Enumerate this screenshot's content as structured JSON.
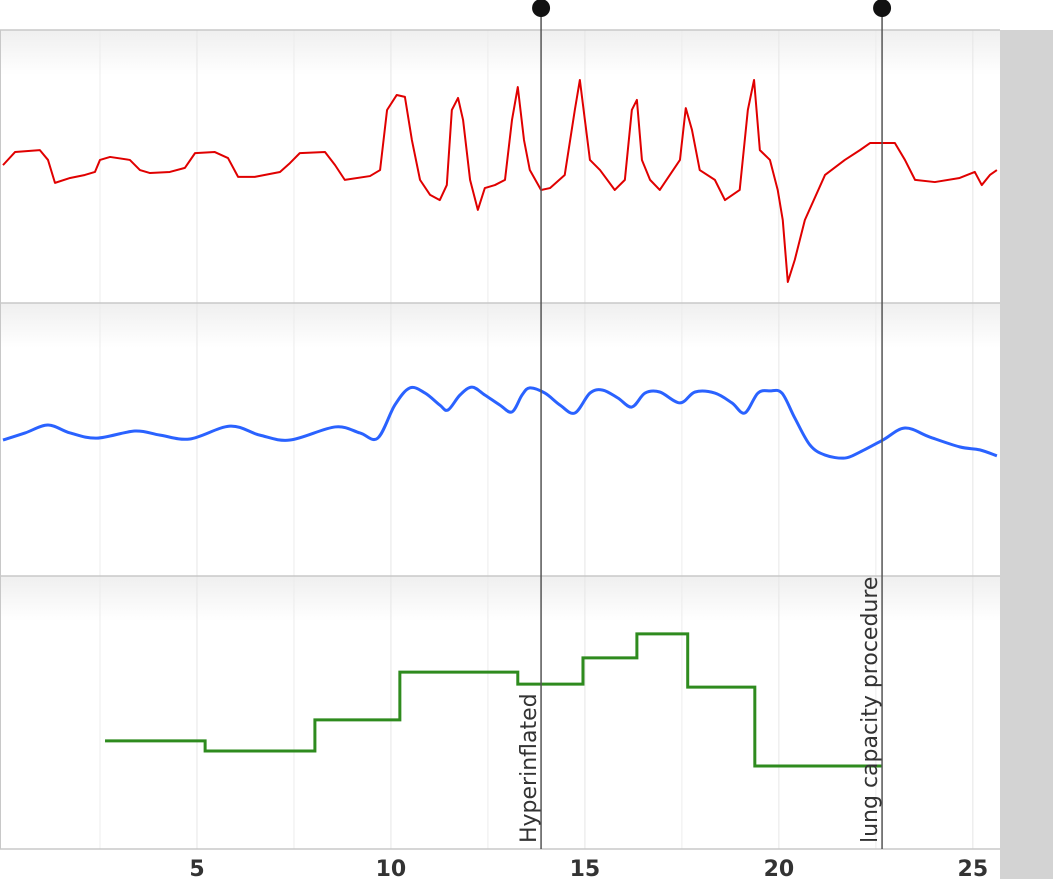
{
  "chart_data": [
    {
      "type": "line",
      "color": "#e00000",
      "ylim": [
        0,
        100
      ],
      "x": [
        0,
        0.31,
        0.95,
        1.16,
        1.34,
        1.73,
        2.11,
        2.37,
        2.5,
        2.76,
        3.27,
        3.53,
        3.79,
        4.3,
        4.69,
        4.95,
        5.46,
        5.8,
        6.06,
        6.49,
        7.14,
        7.4,
        7.65,
        8.3,
        8.56,
        8.81,
        9.46,
        9.72,
        9.9,
        10.15,
        10.36,
        10.54,
        10.75,
        11.01,
        11.26,
        11.44,
        11.57,
        11.73,
        11.86,
        12.04,
        12.24,
        12.42,
        12.68,
        12.94,
        13.12,
        13.27,
        13.43,
        13.58,
        13.87,
        14.1,
        14.48,
        14.74,
        14.87,
        15.0,
        15.13,
        15.39,
        15.77,
        16.03,
        16.21,
        16.34,
        16.47,
        16.68,
        16.93,
        17.45,
        17.6,
        17.76,
        17.96,
        18.35,
        18.61,
        18.99,
        19.2,
        19.36,
        19.51,
        19.77,
        19.97,
        20.1,
        20.23,
        20.41,
        20.67,
        21.19,
        21.7,
        22.09,
        22.35,
        22.99,
        23.25,
        23.51,
        24.02,
        24.66,
        25.05,
        25.23,
        25.44,
        25.62
      ],
      "values": [
        50.5,
        55.3,
        56.0,
        52.4,
        44.0,
        45.8,
        46.9,
        48.0,
        52.4,
        53.5,
        52.4,
        48.7,
        47.6,
        48.0,
        49.5,
        54.9,
        55.3,
        53.1,
        46.2,
        46.2,
        48.0,
        51.3,
        54.9,
        55.3,
        50.5,
        45.1,
        46.5,
        48.7,
        70.7,
        76.2,
        75.5,
        59.7,
        45.1,
        39.6,
        37.7,
        43.2,
        70.7,
        75.1,
        67.0,
        45.1,
        34.1,
        42.1,
        43.2,
        45.1,
        67.0,
        79.1,
        59.7,
        48.7,
        41.4,
        42.1,
        46.9,
        70.7,
        81.7,
        67.0,
        52.4,
        48.7,
        41.4,
        45.1,
        70.7,
        74.4,
        52.4,
        45.1,
        41.4,
        52.4,
        71.4,
        63.4,
        48.7,
        45.1,
        37.7,
        41.4,
        70.7,
        81.7,
        56.0,
        52.4,
        41.4,
        30.4,
        7.7,
        15.8,
        30.4,
        46.9,
        52.4,
        56.0,
        58.6,
        58.6,
        52.4,
        45.1,
        44.3,
        45.8,
        48.0,
        43.2,
        46.9,
        48.7
      ]
    },
    {
      "type": "line",
      "smooth": true,
      "color": "#2a62ff",
      "ylim": [
        0,
        100
      ],
      "x": [
        0,
        0.57,
        1.16,
        1.73,
        2.42,
        3.4,
        4.05,
        4.82,
        5.85,
        6.62,
        7.4,
        8.56,
        9.2,
        9.66,
        10.1,
        10.49,
        10.88,
        11.26,
        11.47,
        11.78,
        12.09,
        12.42,
        12.81,
        13.12,
        13.38,
        13.58,
        13.97,
        14.36,
        14.74,
        15.13,
        15.46,
        15.85,
        16.21,
        16.55,
        16.93,
        17.45,
        17.84,
        18.35,
        18.79,
        19.12,
        19.46,
        19.77,
        20.08,
        20.41,
        20.8,
        21.19,
        21.7,
        22.09,
        22.68,
        23.25,
        23.89,
        24.66,
        25.18,
        25.62
      ],
      "values": [
        49.8,
        52.4,
        55.3,
        52.4,
        50.5,
        53.1,
        51.6,
        50.2,
        54.9,
        51.6,
        49.8,
        54.6,
        52.4,
        50.5,
        62.6,
        68.9,
        67.0,
        62.6,
        60.8,
        66.3,
        69.2,
        66.3,
        62.6,
        60.1,
        66.3,
        68.9,
        67.0,
        62.6,
        59.7,
        67.0,
        68.1,
        65.2,
        61.9,
        67.0,
        67.4,
        63.4,
        67.4,
        67.0,
        63.4,
        59.7,
        67.0,
        67.8,
        67.0,
        57.9,
        48.0,
        44.3,
        43.2,
        45.4,
        49.8,
        54.2,
        50.9,
        47.3,
        46.2,
        44.0
      ]
    },
    {
      "type": "step",
      "color": "#2e8b1e",
      "ylim": [
        0,
        100
      ],
      "x": [
        2.63,
        5.21,
        8.04,
        10.23,
        13.27,
        14.95,
        16.34,
        17.65,
        19.38,
        22.66
      ],
      "values": [
        39.6,
        35.9,
        47.3,
        64.8,
        60.4,
        70.0,
        78.8,
        59.3,
        30.4,
        30.4
      ],
      "xlim": [
        0,
        25.7
      ],
      "xticks": [
        5,
        10,
        15,
        20,
        25
      ],
      "xticks_minor": [
        2.5,
        7.5,
        12.5,
        17.5,
        22.5
      ],
      "grid": true
    }
  ],
  "annotations": [
    {
      "x": 13.87,
      "label": "Hyperinflated"
    },
    {
      "x": 22.66,
      "label": "lung capacity procedure"
    }
  ]
}
